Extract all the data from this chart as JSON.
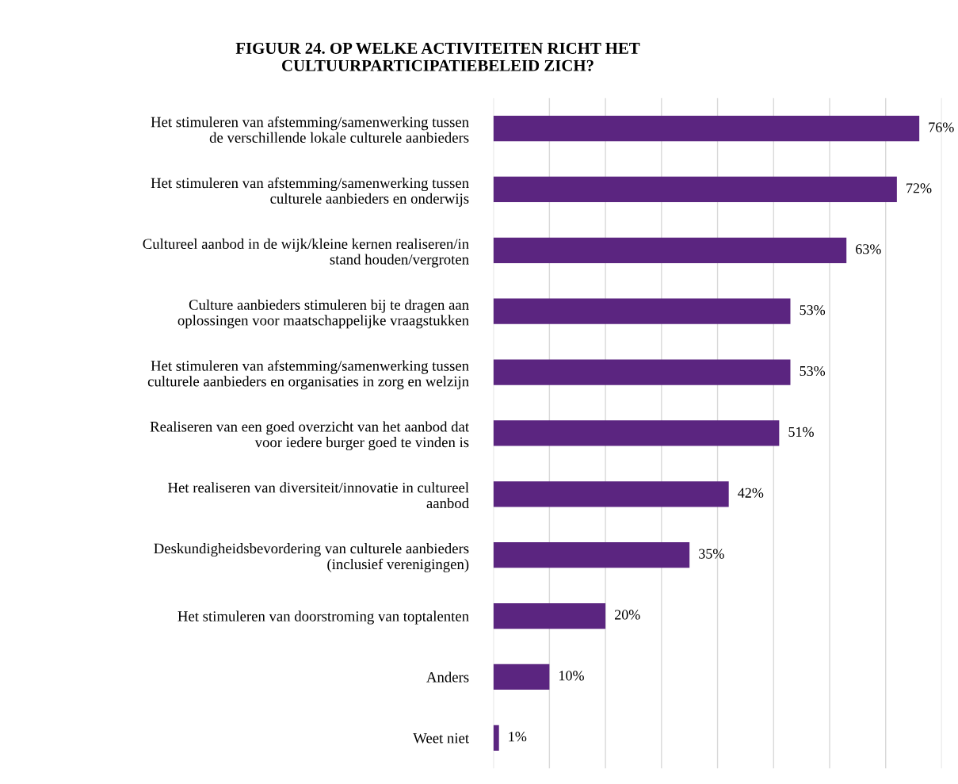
{
  "chart_data": {
    "type": "bar",
    "orientation": "horizontal",
    "title": "FIGUUR 24. OP WELKE ACTIVITEITEN RICHT HET\nCULTUURPARTICIPATIEBELEID ZICH?",
    "categories": [
      "Het stimuleren van afstemming/samenwerking tussen\nde verschillende lokale culturele aanbieders",
      "Het stimuleren van afstemming/samenwerking tussen\nculturele aanbieders en onderwijs",
      "Cultureel aanbod in de wijk/kleine kernen realiseren/in\nstand houden/vergroten",
      "Culture aanbieders stimuleren bij te dragen aan\noplossingen voor maatschappelijke vraagstukken",
      "Het stimuleren van afstemming/samenwerking tussen\nculturele aanbieders en organisaties in zorg en welzijn",
      "Realiseren van een goed overzicht van het aanbod dat\nvoor iedere burger goed te vinden is",
      "Het realiseren van diversiteit/innovatie in cultureel\naanbod",
      "Deskundigheidsbevordering van culturele aanbieders\n(inclusief verenigingen)",
      "Het stimuleren van doorstroming van toptalenten",
      "Anders",
      "Weet niet"
    ],
    "values": [
      76,
      72,
      63,
      53,
      53,
      51,
      42,
      35,
      20,
      10,
      1
    ],
    "value_labels": [
      "76%",
      "72%",
      "63%",
      "53%",
      "53%",
      "51%",
      "42%",
      "35%",
      "20%",
      "10%",
      "1%"
    ],
    "color": "#5b2580",
    "xlim": [
      0,
      80
    ],
    "xticks": [
      {
        "value": 0,
        "label": null
      },
      {
        "value": 10,
        "label": null
      },
      {
        "value": 20,
        "label": null
      },
      {
        "value": 30,
        "label": null
      },
      {
        "value": 40,
        "label": null
      },
      {
        "value": 50,
        "label": null
      },
      {
        "value": 60,
        "label": null
      },
      {
        "value": 70,
        "label": null
      },
      {
        "value": 80,
        "label": null
      }
    ],
    "tick_labels": "y",
    "grid": "x",
    "legend": false
  }
}
